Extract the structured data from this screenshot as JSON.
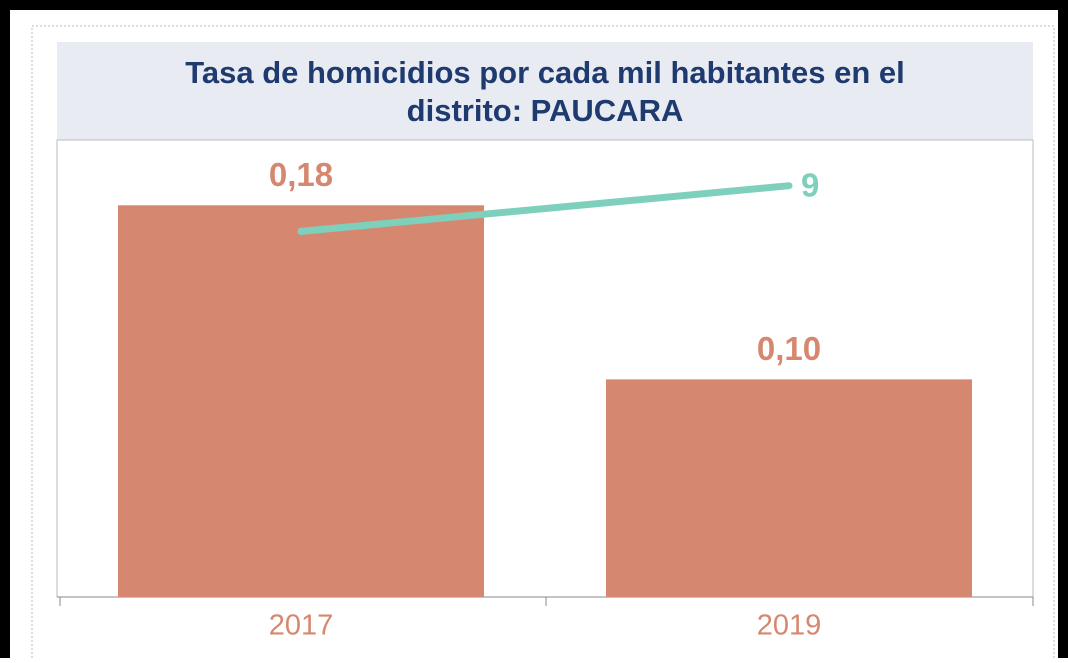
{
  "chart_data": {
    "type": "bar",
    "title": "Tasa de homicidios por cada mil habitantes en el distrito: PAUCARA",
    "categories": [
      "2017",
      "2019"
    ],
    "series": [
      {
        "type": "bar",
        "color": "#d6876f",
        "values": [
          0.18,
          0.1
        ],
        "value_labels": [
          "0,18",
          "0,10"
        ]
      },
      {
        "type": "line",
        "color": "#7fcfbd",
        "values": [
          8,
          9
        ],
        "axis": "y2"
      }
    ],
    "ylim": [
      0,
      0.21
    ],
    "y2lim": [
      0,
      10
    ]
  }
}
